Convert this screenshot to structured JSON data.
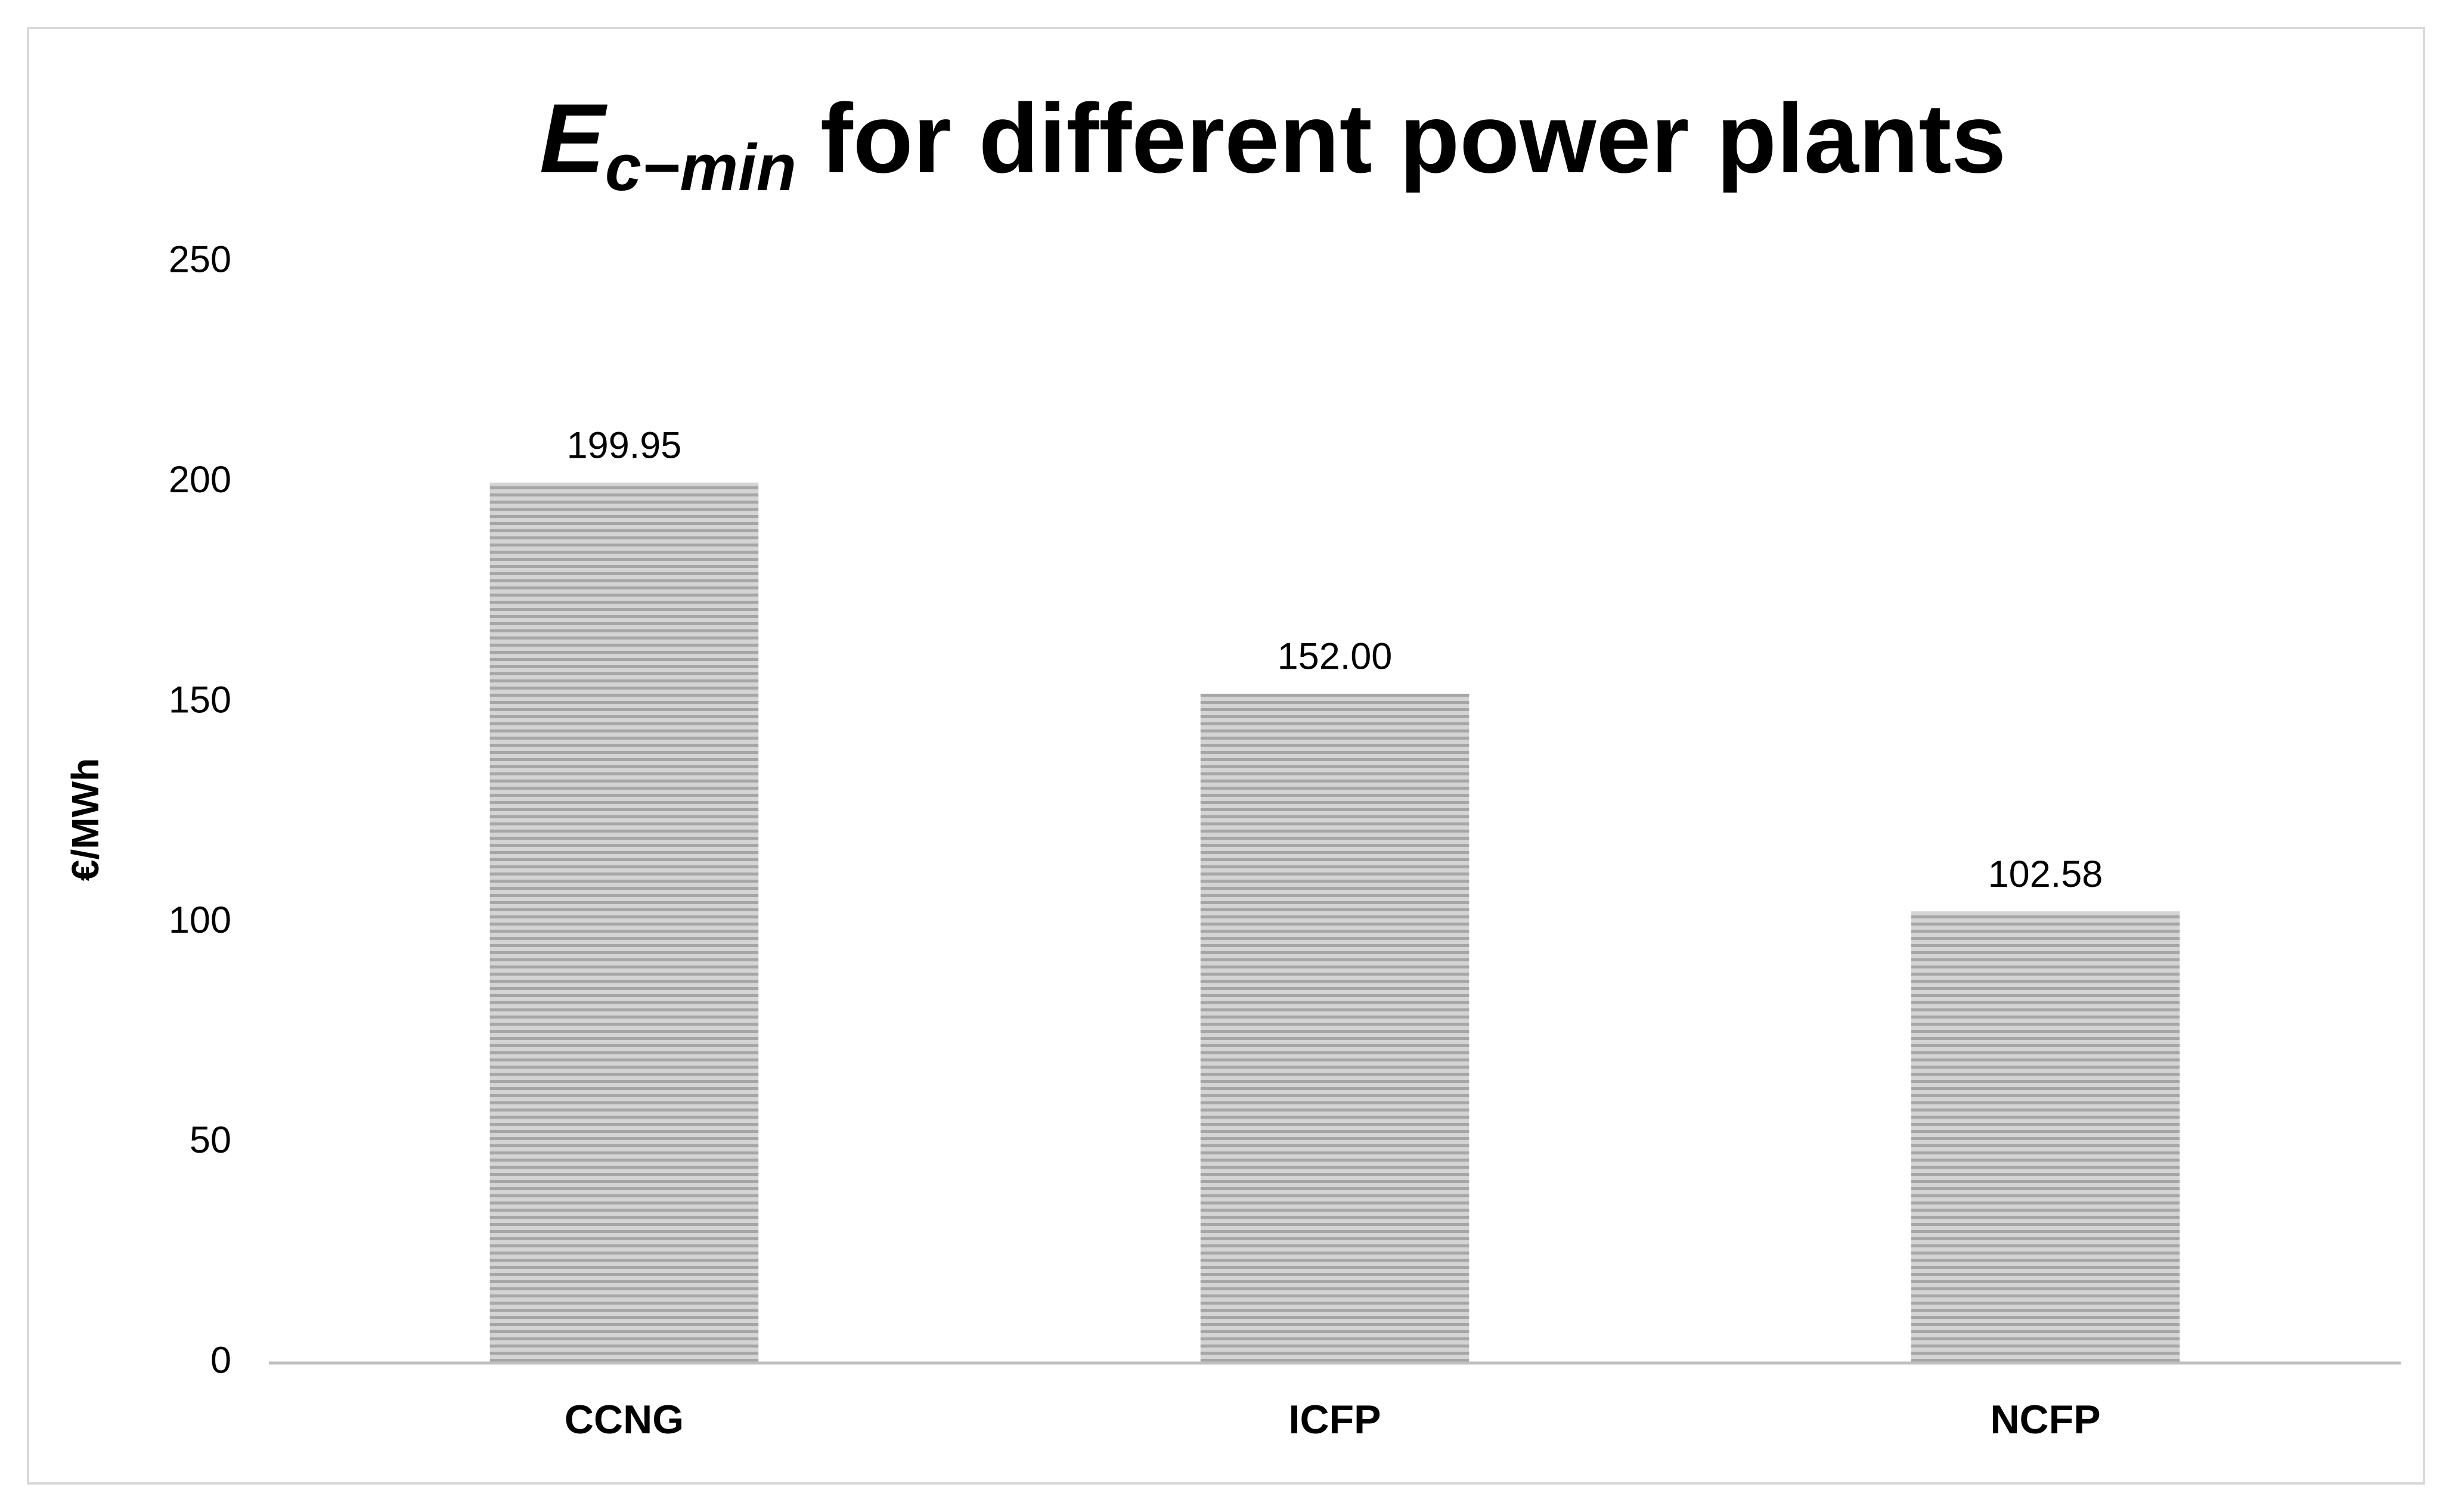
{
  "chart_data": {
    "type": "bar",
    "title_symbol": "E",
    "title_subscript": "c−min",
    "title": "for different power plants",
    "ylabel": "€/MWh",
    "categories": [
      "CCNG",
      "ICFP",
      "NCFP"
    ],
    "values": [
      199.95,
      152,
      102.58
    ],
    "value_labels": [
      "199.95",
      "152.00",
      "102.58"
    ],
    "color": "#b0b0b0",
    "ylim": [
      0,
      250
    ],
    "yticks": [
      0,
      50,
      100,
      150,
      200,
      250
    ],
    "grid": false
  }
}
